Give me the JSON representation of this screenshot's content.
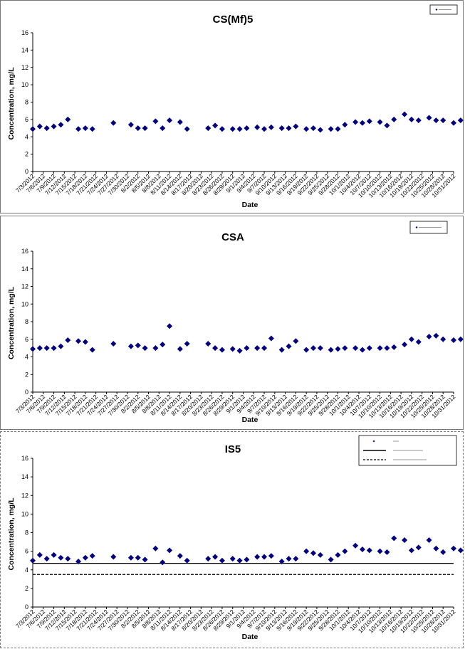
{
  "chart_data": [
    {
      "type": "scatter",
      "title": "CS(Mf)5",
      "xlabel": "Date",
      "ylabel": "Concentration, mg/L",
      "ylim": [
        0,
        16
      ],
      "yticks": [
        0,
        2,
        4,
        6,
        8,
        10,
        12,
        14,
        16
      ],
      "xlim": [
        "7/3/2012",
        "10/31/2012"
      ],
      "xticks": [
        "7/3/2012",
        "7/6/2012",
        "7/9/2012",
        "7/12/2012",
        "7/15/2012",
        "7/18/2012",
        "7/21/2012",
        "7/24/2012",
        "7/27/2012",
        "7/30/2012",
        "8/2/2012",
        "8/5/2012",
        "8/8/2012",
        "8/11/2012",
        "8/14/2012",
        "8/17/2012",
        "8/20/2012",
        "8/23/2012",
        "8/26/2012",
        "8/29/2012",
        "9/1/2012",
        "9/4/2012",
        "9/7/2012",
        "9/10/2012",
        "9/13/2012",
        "9/16/2012",
        "9/19/2012",
        "9/22/2012",
        "9/25/2012",
        "9/28/2012",
        "10/1/2012",
        "10/4/2012",
        "10/7/2012",
        "10/10/2012",
        "10/13/2012",
        "10/16/2012",
        "10/19/2012",
        "10/22/2012",
        "10/25/2012",
        "10/28/2012",
        "10/31/2012"
      ],
      "grid": false,
      "legend_position": "top-right",
      "series": [
        {
          "color": "#000080",
          "marker": "diamond",
          "points": [
            [
              "7/3/2012",
              4.9
            ],
            [
              "7/5/2012",
              5.2
            ],
            [
              "7/7/2012",
              5.0
            ],
            [
              "7/9/2012",
              5.2
            ],
            [
              "7/11/2012",
              5.4
            ],
            [
              "7/13/2012",
              6.0
            ],
            [
              "7/16/2012",
              4.9
            ],
            [
              "7/18/2012",
              5.0
            ],
            [
              "7/20/2012",
              4.9
            ],
            [
              "7/26/2012",
              5.6
            ],
            [
              "7/31/2012",
              5.4
            ],
            [
              "8/2/2012",
              5.0
            ],
            [
              "8/4/2012",
              5.0
            ],
            [
              "8/7/2012",
              5.8
            ],
            [
              "8/9/2012",
              5.0
            ],
            [
              "8/11/2012",
              5.9
            ],
            [
              "8/14/2012",
              5.7
            ],
            [
              "8/16/2012",
              4.9
            ],
            [
              "8/22/2012",
              5.0
            ],
            [
              "8/24/2012",
              5.3
            ],
            [
              "8/26/2012",
              4.9
            ],
            [
              "8/29/2012",
              4.9
            ],
            [
              "8/31/2012",
              4.9
            ],
            [
              "9/2/2012",
              5.0
            ],
            [
              "9/5/2012",
              5.1
            ],
            [
              "9/7/2012",
              4.9
            ],
            [
              "9/9/2012",
              5.1
            ],
            [
              "9/12/2012",
              5.0
            ],
            [
              "9/14/2012",
              5.0
            ],
            [
              "9/16/2012",
              5.2
            ],
            [
              "9/19/2012",
              4.9
            ],
            [
              "9/21/2012",
              5.0
            ],
            [
              "9/23/2012",
              4.8
            ],
            [
              "9/26/2012",
              4.9
            ],
            [
              "9/28/2012",
              4.9
            ],
            [
              "9/30/2012",
              5.4
            ],
            [
              "10/3/2012",
              5.7
            ],
            [
              "10/5/2012",
              5.6
            ],
            [
              "10/7/2012",
              5.8
            ],
            [
              "10/10/2012",
              5.7
            ],
            [
              "10/12/2012",
              5.3
            ],
            [
              "10/14/2012",
              6.0
            ],
            [
              "10/17/2012",
              6.6
            ],
            [
              "10/19/2012",
              6.0
            ],
            [
              "10/21/2012",
              5.9
            ],
            [
              "10/24/2012",
              6.2
            ],
            [
              "10/26/2012",
              5.9
            ],
            [
              "10/28/2012",
              5.9
            ],
            [
              "10/31/2012",
              5.6
            ],
            [
              "11/2/2012",
              5.9
            ]
          ]
        }
      ]
    },
    {
      "type": "scatter",
      "title": "CSA",
      "xlabel": "Date",
      "ylabel": "Concentration, mg/L",
      "ylim": [
        0,
        16
      ],
      "yticks": [
        0,
        2,
        4,
        6,
        8,
        10,
        12,
        14,
        16
      ],
      "xlim": [
        "7/3/2012",
        "10/31/2012"
      ],
      "xticks": [
        "7/3/2012",
        "7/6/2012",
        "7/9/2012",
        "7/12/2012",
        "7/15/2012",
        "7/18/2012",
        "7/21/2012",
        "7/24/2012",
        "7/27/2012",
        "7/30/2012",
        "8/2/2012",
        "8/5/2012",
        "8/8/2012",
        "8/11/2012",
        "8/14/2012",
        "8/17/2012",
        "8/20/2012",
        "8/23/2012",
        "8/26/2012",
        "8/29/2012",
        "9/1/2012",
        "9/4/2012",
        "9/7/2012",
        "9/10/2012",
        "9/13/2012",
        "9/16/2012",
        "9/19/2012",
        "9/22/2012",
        "9/25/2012",
        "9/28/2012",
        "10/1/2012",
        "10/4/2012",
        "10/7/2012",
        "10/10/2012",
        "10/13/2012",
        "10/16/2012",
        "10/19/2012",
        "10/22/2012",
        "10/25/2012",
        "10/28/2012",
        "10/31/2012"
      ],
      "grid": false,
      "legend_position": "top-right",
      "series": [
        {
          "color": "#000080",
          "marker": "diamond",
          "points": [
            [
              "7/3/2012",
              4.9
            ],
            [
              "7/5/2012",
              5.0
            ],
            [
              "7/7/2012",
              5.0
            ],
            [
              "7/9/2012",
              5.0
            ],
            [
              "7/11/2012",
              5.2
            ],
            [
              "7/13/2012",
              5.9
            ],
            [
              "7/16/2012",
              5.8
            ],
            [
              "7/18/2012",
              5.7
            ],
            [
              "7/20/2012",
              4.8
            ],
            [
              "7/26/2012",
              5.5
            ],
            [
              "7/31/2012",
              5.2
            ],
            [
              "8/2/2012",
              5.3
            ],
            [
              "8/4/2012",
              5.0
            ],
            [
              "8/7/2012",
              5.0
            ],
            [
              "8/9/2012",
              5.4
            ],
            [
              "8/11/2012",
              7.5
            ],
            [
              "8/14/2012",
              4.9
            ],
            [
              "8/16/2012",
              5.5
            ],
            [
              "8/22/2012",
              5.5
            ],
            [
              "8/24/2012",
              5.0
            ],
            [
              "8/26/2012",
              4.8
            ],
            [
              "8/29/2012",
              4.9
            ],
            [
              "8/31/2012",
              4.7
            ],
            [
              "9/2/2012",
              5.0
            ],
            [
              "9/5/2012",
              5.0
            ],
            [
              "9/7/2012",
              5.0
            ],
            [
              "9/9/2012",
              6.1
            ],
            [
              "9/12/2012",
              4.8
            ],
            [
              "9/14/2012",
              5.2
            ],
            [
              "9/16/2012",
              5.8
            ],
            [
              "9/19/2012",
              4.8
            ],
            [
              "9/21/2012",
              5.0
            ],
            [
              "9/23/2012",
              5.0
            ],
            [
              "9/26/2012",
              4.8
            ],
            [
              "9/28/2012",
              4.9
            ],
            [
              "9/30/2012",
              5.0
            ],
            [
              "10/3/2012",
              5.0
            ],
            [
              "10/5/2012",
              4.8
            ],
            [
              "10/7/2012",
              5.0
            ],
            [
              "10/10/2012",
              5.0
            ],
            [
              "10/12/2012",
              5.0
            ],
            [
              "10/14/2012",
              5.1
            ],
            [
              "10/17/2012",
              5.4
            ],
            [
              "10/19/2012",
              6.0
            ],
            [
              "10/21/2012",
              5.7
            ],
            [
              "10/24/2012",
              6.3
            ],
            [
              "10/26/2012",
              6.4
            ],
            [
              "10/28/2012",
              6.0
            ],
            [
              "10/31/2012",
              5.9
            ],
            [
              "11/2/2012",
              6.0
            ]
          ]
        }
      ]
    },
    {
      "type": "scatter",
      "title": "IS5",
      "xlabel": "Date",
      "ylabel": "Concentration, mg/L",
      "ylim": [
        0,
        16
      ],
      "yticks": [
        0,
        2,
        4,
        6,
        8,
        10,
        12,
        14,
        16
      ],
      "xlim": [
        "7/3/2012",
        "10/31/2012"
      ],
      "xticks": [
        "7/3/2012",
        "7/6/2012",
        "7/9/2012",
        "7/12/2012",
        "7/15/2012",
        "7/18/2012",
        "7/21/2012",
        "7/24/2012",
        "7/27/2012",
        "7/30/2012",
        "8/2/2012",
        "8/5/2012",
        "8/8/2012",
        "8/11/2012",
        "8/14/2012",
        "8/17/2012",
        "8/20/2012",
        "8/23/2012",
        "8/26/2012",
        "8/29/2012",
        "9/1/2012",
        "9/4/2012",
        "9/7/2012",
        "9/10/2012",
        "9/13/2012",
        "9/16/2012",
        "9/19/2012",
        "9/22/2012",
        "9/25/2012",
        "9/28/2012",
        "10/1/2012",
        "10/4/2012",
        "10/7/2012",
        "10/10/2012",
        "10/13/2012",
        "10/16/2012",
        "10/19/2012",
        "10/22/2012",
        "10/25/2012",
        "10/28/2012",
        "10/31/2012"
      ],
      "grid": false,
      "legend_position": "top-right",
      "reference_lines": [
        {
          "y": 4.7,
          "style": "solid",
          "color": "#000000"
        },
        {
          "y": 3.5,
          "style": "dashed",
          "color": "#000000"
        }
      ],
      "series": [
        {
          "color": "#000080",
          "marker": "diamond",
          "points": [
            [
              "7/3/2012",
              5.0
            ],
            [
              "7/5/2012",
              5.6
            ],
            [
              "7/7/2012",
              5.2
            ],
            [
              "7/9/2012",
              5.6
            ],
            [
              "7/11/2012",
              5.3
            ],
            [
              "7/13/2012",
              5.2
            ],
            [
              "7/16/2012",
              4.9
            ],
            [
              "7/18/2012",
              5.3
            ],
            [
              "7/20/2012",
              5.5
            ],
            [
              "7/26/2012",
              5.4
            ],
            [
              "7/31/2012",
              5.3
            ],
            [
              "8/2/2012",
              5.3
            ],
            [
              "8/4/2012",
              5.1
            ],
            [
              "8/7/2012",
              6.3
            ],
            [
              "8/9/2012",
              4.8
            ],
            [
              "8/11/2012",
              6.1
            ],
            [
              "8/14/2012",
              5.5
            ],
            [
              "8/16/2012",
              5.0
            ],
            [
              "8/22/2012",
              5.2
            ],
            [
              "8/24/2012",
              5.4
            ],
            [
              "8/26/2012",
              5.0
            ],
            [
              "8/29/2012",
              5.2
            ],
            [
              "8/31/2012",
              5.0
            ],
            [
              "9/2/2012",
              5.1
            ],
            [
              "9/5/2012",
              5.4
            ],
            [
              "9/7/2012",
              5.4
            ],
            [
              "9/9/2012",
              5.5
            ],
            [
              "9/12/2012",
              4.9
            ],
            [
              "9/14/2012",
              5.2
            ],
            [
              "9/16/2012",
              5.2
            ],
            [
              "9/19/2012",
              6.0
            ],
            [
              "9/21/2012",
              5.8
            ],
            [
              "9/23/2012",
              5.6
            ],
            [
              "9/26/2012",
              5.1
            ],
            [
              "9/28/2012",
              5.6
            ],
            [
              "9/30/2012",
              6.0
            ],
            [
              "10/3/2012",
              6.6
            ],
            [
              "10/5/2012",
              6.2
            ],
            [
              "10/7/2012",
              6.1
            ],
            [
              "10/10/2012",
              6.0
            ],
            [
              "10/12/2012",
              5.9
            ],
            [
              "10/14/2012",
              7.4
            ],
            [
              "10/17/2012",
              7.2
            ],
            [
              "10/19/2012",
              6.1
            ],
            [
              "10/21/2012",
              6.4
            ],
            [
              "10/24/2012",
              7.2
            ],
            [
              "10/26/2012",
              6.3
            ],
            [
              "10/28/2012",
              5.9
            ],
            [
              "10/31/2012",
              6.3
            ],
            [
              "11/2/2012",
              6.1
            ]
          ]
        }
      ]
    }
  ]
}
